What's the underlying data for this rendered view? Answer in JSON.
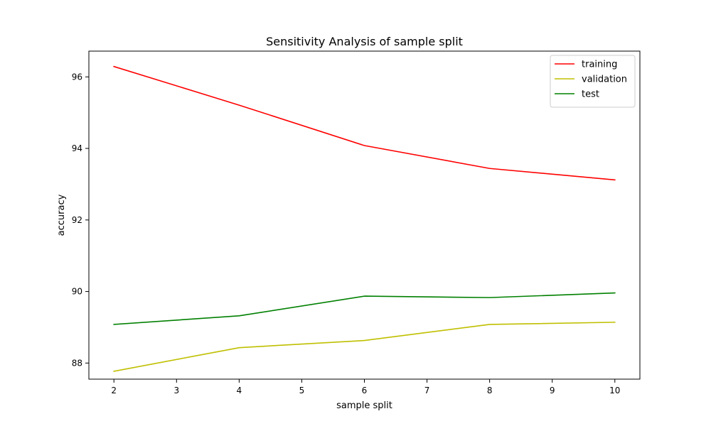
{
  "chart_data": {
    "type": "line",
    "title": "Sensitivity Analysis of sample split",
    "xlabel": "sample split",
    "ylabel": "accuracy",
    "x": [
      2,
      4,
      6,
      8,
      10
    ],
    "xlim": [
      1.6,
      10.4
    ],
    "ylim": [
      87.55,
      96.72
    ],
    "xticks": [
      2,
      3,
      4,
      5,
      6,
      7,
      8,
      9,
      10
    ],
    "yticks": [
      88,
      90,
      92,
      94,
      96
    ],
    "grid": false,
    "legend_position": "top-right",
    "series": [
      {
        "name": "training",
        "color": "#ff0000",
        "values": [
          96.29,
          95.21,
          94.08,
          93.44,
          93.12
        ]
      },
      {
        "name": "validation",
        "color": "#bfbf00",
        "values": [
          87.77,
          88.43,
          88.63,
          89.08,
          89.14
        ]
      },
      {
        "name": "test",
        "color": "#008000",
        "values": [
          89.08,
          89.32,
          89.87,
          89.83,
          89.96
        ]
      }
    ]
  }
}
